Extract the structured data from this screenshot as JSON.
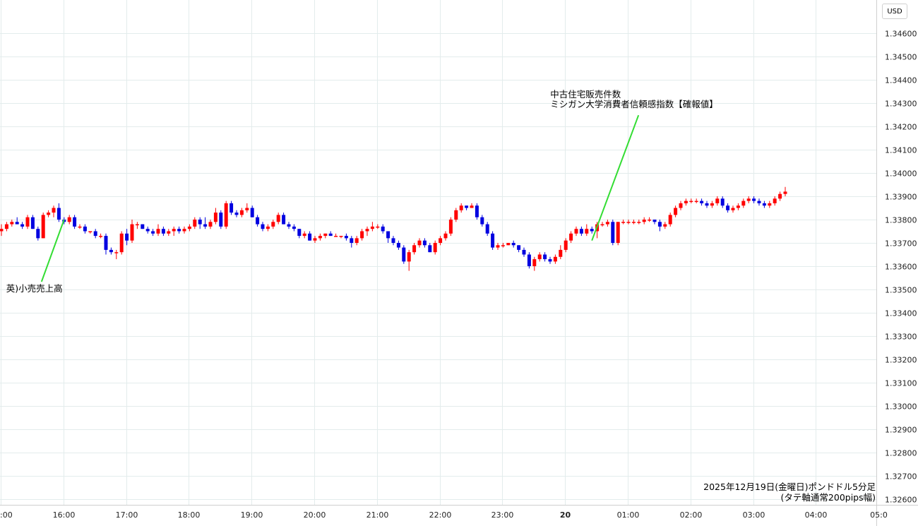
{
  "currency_button": "USD",
  "chart_data": {
    "type": "candlestick",
    "caption": [
      "2025年12月19日(金曜日)ポンドドル5分足",
      "(タテ軸通常200pips幅)"
    ],
    "colors": {
      "up": "#ff0000",
      "down": "#0000e0",
      "annotation_line": "#33dd33",
      "grid": "#e3ecec"
    },
    "grid": true,
    "ylim": [
      1.3255,
      1.3475
    ],
    "yticks": [
      1.346,
      1.345,
      1.344,
      1.343,
      1.342,
      1.341,
      1.34,
      1.339,
      1.338,
      1.337,
      1.336,
      1.335,
      1.334,
      1.333,
      1.332,
      1.331,
      1.33,
      1.329,
      1.328,
      1.327,
      1.326
    ],
    "ytick_labels": [
      "1.34600",
      "1.34500",
      "1.34400",
      "1.34300",
      "1.34200",
      "1.34100",
      "1.34000",
      "1.33900",
      "1.33800",
      "1.33700",
      "1.33600",
      "1.33500",
      "1.33400",
      "1.33300",
      "1.33200",
      "1.33100",
      "1.33000",
      "1.32900",
      "1.32800",
      "1.32700",
      "1.32600"
    ],
    "xtick_labels": [
      ":00",
      "16:00",
      "17:00",
      "18:00",
      "19:00",
      "20:00",
      "21:00",
      "22:00",
      "23:00",
      "20",
      "01:00",
      "02:00",
      "03:00",
      "04:00",
      "05:0"
    ],
    "xtick_bold": [
      false,
      false,
      false,
      false,
      false,
      false,
      false,
      false,
      false,
      true,
      false,
      false,
      false,
      false,
      false
    ],
    "x_start": "15:00",
    "bar_minutes": 5,
    "annotations": [
      {
        "bar": 12,
        "price": 1.338,
        "text_price": 1.335,
        "lines": [
          "英)小売売上高"
        ]
      },
      {
        "bar": 113,
        "price": 1.3371,
        "text_price": 1.3426,
        "lines": [
          "中古住宅販売件数",
          "ミシガン大学消費者信頼感指数【確報値】"
        ]
      }
    ],
    "candles": [
      [
        1.3375,
        1.3378,
        1.3373,
        1.3376
      ],
      [
        1.3376,
        1.3379,
        1.3375,
        1.3378
      ],
      [
        1.3378,
        1.338,
        1.3377,
        1.3379
      ],
      [
        1.3379,
        1.3381,
        1.3378,
        1.3378
      ],
      [
        1.3378,
        1.3379,
        1.3376,
        1.3377
      ],
      [
        1.3377,
        1.3382,
        1.3376,
        1.3381
      ],
      [
        1.3381,
        1.3382,
        1.3376,
        1.3376
      ],
      [
        1.3376,
        1.3377,
        1.3371,
        1.3372
      ],
      [
        1.3372,
        1.3383,
        1.3372,
        1.3382
      ],
      [
        1.3382,
        1.3384,
        1.3381,
        1.3383
      ],
      [
        1.3383,
        1.3386,
        1.3381,
        1.3385
      ],
      [
        1.3385,
        1.3387,
        1.3379,
        1.338
      ],
      [
        1.338,
        1.3381,
        1.3378,
        1.3379
      ],
      [
        1.3379,
        1.3382,
        1.3378,
        1.3381
      ],
      [
        1.3381,
        1.3382,
        1.3376,
        1.3377
      ],
      [
        1.3377,
        1.3378,
        1.3376,
        1.3377
      ],
      [
        1.3377,
        1.3378,
        1.3374,
        1.3375
      ],
      [
        1.3375,
        1.3375,
        1.3374,
        1.3375
      ],
      [
        1.3375,
        1.3376,
        1.3372,
        1.3373
      ],
      [
        1.3373,
        1.3374,
        1.3372,
        1.3373
      ],
      [
        1.3373,
        1.3374,
        1.3365,
        1.3367
      ],
      [
        1.3367,
        1.3368,
        1.3365,
        1.3366
      ],
      [
        1.3366,
        1.3367,
        1.3363,
        1.3366
      ],
      [
        1.3366,
        1.3375,
        1.3365,
        1.3374
      ],
      [
        1.3374,
        1.3376,
        1.3369,
        1.3371
      ],
      [
        1.3371,
        1.338,
        1.337,
        1.3378
      ],
      [
        1.3378,
        1.3379,
        1.3376,
        1.3378
      ],
      [
        1.3378,
        1.3378,
        1.3376,
        1.3376
      ],
      [
        1.3376,
        1.3377,
        1.3374,
        1.3375
      ],
      [
        1.3375,
        1.3376,
        1.3373,
        1.3374
      ],
      [
        1.3374,
        1.3378,
        1.3373,
        1.3376
      ],
      [
        1.3376,
        1.3377,
        1.3373,
        1.3374
      ],
      [
        1.3374,
        1.3376,
        1.3373,
        1.3375
      ],
      [
        1.3375,
        1.3377,
        1.3373,
        1.3376
      ],
      [
        1.3376,
        1.3377,
        1.3374,
        1.3375
      ],
      [
        1.3375,
        1.3377,
        1.3374,
        1.3376
      ],
      [
        1.3376,
        1.3378,
        1.3375,
        1.3377
      ],
      [
        1.3377,
        1.3381,
        1.3376,
        1.338
      ],
      [
        1.338,
        1.3381,
        1.3376,
        1.3378
      ],
      [
        1.3378,
        1.3381,
        1.3376,
        1.3377
      ],
      [
        1.3377,
        1.338,
        1.3376,
        1.3379
      ],
      [
        1.3379,
        1.3385,
        1.3378,
        1.3383
      ],
      [
        1.3383,
        1.3384,
        1.3376,
        1.3377
      ],
      [
        1.3377,
        1.3388,
        1.3376,
        1.3387
      ],
      [
        1.3387,
        1.3388,
        1.3382,
        1.3383
      ],
      [
        1.3383,
        1.3384,
        1.3381,
        1.3382
      ],
      [
        1.3382,
        1.3385,
        1.3381,
        1.3384
      ],
      [
        1.3384,
        1.3387,
        1.3383,
        1.3385
      ],
      [
        1.3385,
        1.3386,
        1.3381,
        1.3381
      ],
      [
        1.3381,
        1.3382,
        1.3377,
        1.3378
      ],
      [
        1.3378,
        1.3379,
        1.3375,
        1.3376
      ],
      [
        1.3376,
        1.3378,
        1.3375,
        1.3377
      ],
      [
        1.3377,
        1.338,
        1.3376,
        1.3379
      ],
      [
        1.3379,
        1.3383,
        1.3378,
        1.3382
      ],
      [
        1.3382,
        1.3383,
        1.3378,
        1.3378
      ],
      [
        1.3378,
        1.3379,
        1.3376,
        1.3377
      ],
      [
        1.3377,
        1.3378,
        1.3375,
        1.3376
      ],
      [
        1.3376,
        1.3376,
        1.3372,
        1.3373
      ],
      [
        1.3373,
        1.3375,
        1.3372,
        1.3374
      ],
      [
        1.3374,
        1.3375,
        1.3371,
        1.3371
      ],
      [
        1.3371,
        1.3373,
        1.337,
        1.3372
      ],
      [
        1.3372,
        1.3374,
        1.3371,
        1.3373
      ],
      [
        1.3373,
        1.3374,
        1.3372,
        1.3374
      ],
      [
        1.3374,
        1.3375,
        1.3373,
        1.3373
      ],
      [
        1.3373,
        1.3374,
        1.3373,
        1.3373
      ],
      [
        1.3373,
        1.3373,
        1.3372,
        1.3373
      ],
      [
        1.3373,
        1.3374,
        1.3371,
        1.3372
      ],
      [
        1.3372,
        1.3373,
        1.3368,
        1.337
      ],
      [
        1.337,
        1.3373,
        1.3369,
        1.3372
      ],
      [
        1.3372,
        1.3376,
        1.3371,
        1.3375
      ],
      [
        1.3375,
        1.3377,
        1.3373,
        1.3376
      ],
      [
        1.3376,
        1.3379,
        1.3375,
        1.3377
      ],
      [
        1.3377,
        1.3378,
        1.3376,
        1.3377
      ],
      [
        1.3377,
        1.3378,
        1.3374,
        1.3375
      ],
      [
        1.3375,
        1.3375,
        1.337,
        1.3372
      ],
      [
        1.3372,
        1.3373,
        1.3369,
        1.337
      ],
      [
        1.337,
        1.3371,
        1.3367,
        1.3368
      ],
      [
        1.3368,
        1.3369,
        1.3361,
        1.3362
      ],
      [
        1.3362,
        1.3367,
        1.3358,
        1.3366
      ],
      [
        1.3366,
        1.337,
        1.3365,
        1.3369
      ],
      [
        1.3369,
        1.3372,
        1.3368,
        1.3371
      ],
      [
        1.3371,
        1.3372,
        1.3368,
        1.3369
      ],
      [
        1.3369,
        1.337,
        1.3366,
        1.3366
      ],
      [
        1.3366,
        1.3371,
        1.3365,
        1.337
      ],
      [
        1.337,
        1.3373,
        1.3369,
        1.3372
      ],
      [
        1.3372,
        1.3375,
        1.3371,
        1.3374
      ],
      [
        1.3374,
        1.3381,
        1.3373,
        1.338
      ],
      [
        1.338,
        1.3385,
        1.3379,
        1.3384
      ],
      [
        1.3384,
        1.3387,
        1.3383,
        1.3386
      ],
      [
        1.3386,
        1.3386,
        1.3384,
        1.3385
      ],
      [
        1.3385,
        1.3387,
        1.3385,
        1.3386
      ],
      [
        1.3386,
        1.3387,
        1.338,
        1.3381
      ],
      [
        1.3381,
        1.3382,
        1.3377,
        1.3378
      ],
      [
        1.3378,
        1.3379,
        1.3373,
        1.3374
      ],
      [
        1.3374,
        1.3375,
        1.3367,
        1.3368
      ],
      [
        1.3368,
        1.337,
        1.3367,
        1.3369
      ],
      [
        1.3369,
        1.337,
        1.3368,
        1.3369
      ],
      [
        1.3369,
        1.337,
        1.3369,
        1.337
      ],
      [
        1.337,
        1.3371,
        1.3368,
        1.3369
      ],
      [
        1.3369,
        1.3369,
        1.3366,
        1.3367
      ],
      [
        1.3367,
        1.3368,
        1.3364,
        1.3365
      ],
      [
        1.3365,
        1.3366,
        1.3359,
        1.336
      ],
      [
        1.336,
        1.3364,
        1.3358,
        1.3363
      ],
      [
        1.3363,
        1.3366,
        1.3362,
        1.3365
      ],
      [
        1.3365,
        1.3366,
        1.3362,
        1.3363
      ],
      [
        1.3363,
        1.3364,
        1.3361,
        1.3362
      ],
      [
        1.3362,
        1.3365,
        1.3361,
        1.3364
      ],
      [
        1.3364,
        1.3369,
        1.3363,
        1.3367
      ],
      [
        1.3367,
        1.3372,
        1.3366,
        1.3371
      ],
      [
        1.3371,
        1.3375,
        1.337,
        1.3374
      ],
      [
        1.3374,
        1.3377,
        1.3373,
        1.3376
      ],
      [
        1.3376,
        1.3377,
        1.3373,
        1.3374
      ],
      [
        1.3374,
        1.3378,
        1.3373,
        1.3376
      ],
      [
        1.3376,
        1.3377,
        1.3374,
        1.3375
      ],
      [
        1.3375,
        1.3379,
        1.3372,
        1.3378
      ],
      [
        1.3378,
        1.3379,
        1.3377,
        1.3378
      ],
      [
        1.3378,
        1.338,
        1.3377,
        1.3379
      ],
      [
        1.3379,
        1.338,
        1.3369,
        1.337
      ],
      [
        1.337,
        1.3379,
        1.3369,
        1.3379
      ],
      [
        1.3379,
        1.338,
        1.3378,
        1.3379
      ],
      [
        1.3379,
        1.338,
        1.3378,
        1.3379
      ],
      [
        1.3379,
        1.338,
        1.3378,
        1.3379
      ],
      [
        1.3379,
        1.338,
        1.3378,
        1.3379
      ],
      [
        1.3379,
        1.3381,
        1.3378,
        1.338
      ],
      [
        1.338,
        1.3381,
        1.3379,
        1.338
      ],
      [
        1.338,
        1.338,
        1.3378,
        1.3379
      ],
      [
        1.3379,
        1.338,
        1.3375,
        1.3377
      ],
      [
        1.3377,
        1.3379,
        1.3376,
        1.3378
      ],
      [
        1.3378,
        1.3383,
        1.3377,
        1.3382
      ],
      [
        1.3382,
        1.3386,
        1.3381,
        1.3385
      ],
      [
        1.3385,
        1.3388,
        1.3384,
        1.3387
      ],
      [
        1.3387,
        1.3389,
        1.3386,
        1.3388
      ],
      [
        1.3388,
        1.3389,
        1.3387,
        1.3388
      ],
      [
        1.3388,
        1.3389,
        1.3387,
        1.3388
      ],
      [
        1.3388,
        1.3389,
        1.3386,
        1.3387
      ],
      [
        1.3387,
        1.3388,
        1.3385,
        1.3386
      ],
      [
        1.3386,
        1.3388,
        1.3385,
        1.3387
      ],
      [
        1.3387,
        1.339,
        1.3386,
        1.3389
      ],
      [
        1.3389,
        1.339,
        1.3385,
        1.3386
      ],
      [
        1.3386,
        1.3387,
        1.3383,
        1.3384
      ],
      [
        1.3384,
        1.3386,
        1.3383,
        1.3385
      ],
      [
        1.3385,
        1.3387,
        1.3384,
        1.3386
      ],
      [
        1.3386,
        1.3389,
        1.3385,
        1.3388
      ],
      [
        1.3388,
        1.339,
        1.3387,
        1.3389
      ],
      [
        1.3389,
        1.339,
        1.3387,
        1.3388
      ],
      [
        1.3388,
        1.3389,
        1.3386,
        1.3387
      ],
      [
        1.3387,
        1.3388,
        1.3385,
        1.3386
      ],
      [
        1.3386,
        1.3388,
        1.3385,
        1.3387
      ],
      [
        1.3387,
        1.339,
        1.3386,
        1.3389
      ],
      [
        1.3389,
        1.3392,
        1.3388,
        1.3391
      ],
      [
        1.3391,
        1.3394,
        1.339,
        1.3392
      ]
    ]
  }
}
